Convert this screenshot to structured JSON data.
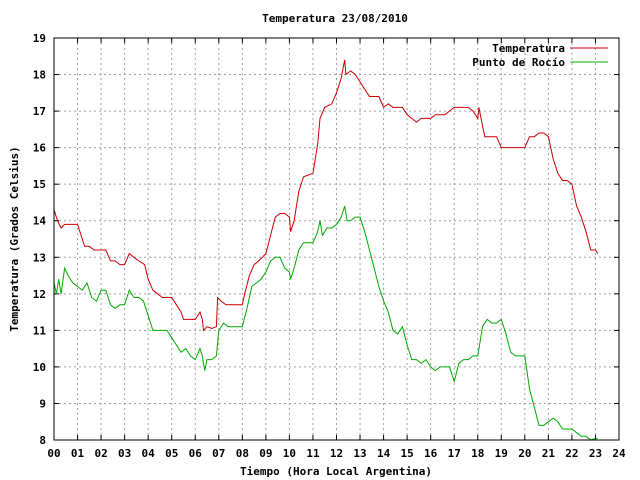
{
  "chart_data": {
    "type": "line",
    "title": "Temperatura 23/08/2010",
    "xlabel": "Tiempo (Hora Local Argentina)",
    "ylabel": "Temperatura (Grados Celsius)",
    "xlim": [
      0,
      24
    ],
    "ylim": [
      8,
      19
    ],
    "grid": true,
    "legend_position": "top-right",
    "x_ticks": [
      "00",
      "01",
      "02",
      "03",
      "04",
      "05",
      "06",
      "07",
      "08",
      "09",
      "10",
      "11",
      "12",
      "13",
      "14",
      "15",
      "16",
      "17",
      "18",
      "19",
      "20",
      "21",
      "22",
      "23",
      "24"
    ],
    "y_ticks": [
      "8",
      "9",
      "10",
      "11",
      "12",
      "13",
      "14",
      "15",
      "16",
      "17",
      "18",
      "19"
    ],
    "series": [
      {
        "name": "Temperatura",
        "color": "#cc0000",
        "points": [
          [
            0.0,
            14.3
          ],
          [
            0.15,
            14.0
          ],
          [
            0.3,
            13.8
          ],
          [
            0.45,
            13.9
          ],
          [
            0.6,
            13.9
          ],
          [
            0.8,
            13.9
          ],
          [
            1.0,
            13.9
          ],
          [
            1.15,
            13.6
          ],
          [
            1.3,
            13.3
          ],
          [
            1.5,
            13.3
          ],
          [
            1.7,
            13.2
          ],
          [
            2.0,
            13.2
          ],
          [
            2.2,
            13.2
          ],
          [
            2.4,
            12.9
          ],
          [
            2.6,
            12.9
          ],
          [
            2.8,
            12.8
          ],
          [
            3.0,
            12.8
          ],
          [
            3.2,
            13.1
          ],
          [
            3.4,
            13.0
          ],
          [
            3.6,
            12.9
          ],
          [
            3.85,
            12.8
          ],
          [
            4.0,
            12.4
          ],
          [
            4.2,
            12.1
          ],
          [
            4.4,
            12.0
          ],
          [
            4.6,
            11.9
          ],
          [
            4.8,
            11.9
          ],
          [
            5.0,
            11.9
          ],
          [
            5.2,
            11.7
          ],
          [
            5.4,
            11.5
          ],
          [
            5.5,
            11.3
          ],
          [
            5.7,
            11.3
          ],
          [
            6.0,
            11.3
          ],
          [
            6.2,
            11.5
          ],
          [
            6.3,
            11.3
          ],
          [
            6.35,
            11.0
          ],
          [
            6.5,
            11.1
          ],
          [
            6.7,
            11.05
          ],
          [
            6.9,
            11.1
          ],
          [
            6.95,
            11.9
          ],
          [
            7.1,
            11.8
          ],
          [
            7.3,
            11.7
          ],
          [
            7.5,
            11.7
          ],
          [
            7.7,
            11.7
          ],
          [
            8.0,
            11.7
          ],
          [
            8.1,
            12.0
          ],
          [
            8.3,
            12.5
          ],
          [
            8.5,
            12.8
          ],
          [
            8.7,
            12.9
          ],
          [
            9.0,
            13.1
          ],
          [
            9.2,
            13.6
          ],
          [
            9.4,
            14.1
          ],
          [
            9.6,
            14.2
          ],
          [
            9.8,
            14.2
          ],
          [
            10.0,
            14.1
          ],
          [
            10.05,
            13.7
          ],
          [
            10.2,
            14.0
          ],
          [
            10.4,
            14.8
          ],
          [
            10.6,
            15.2
          ],
          [
            11.0,
            15.3
          ],
          [
            11.2,
            16.1
          ],
          [
            11.3,
            16.8
          ],
          [
            11.5,
            17.1
          ],
          [
            11.8,
            17.2
          ],
          [
            12.0,
            17.5
          ],
          [
            12.2,
            17.9
          ],
          [
            12.35,
            18.4
          ],
          [
            12.4,
            18.0
          ],
          [
            12.6,
            18.1
          ],
          [
            12.8,
            18.0
          ],
          [
            13.0,
            17.8
          ],
          [
            13.2,
            17.6
          ],
          [
            13.4,
            17.4
          ],
          [
            13.6,
            17.4
          ],
          [
            13.8,
            17.4
          ],
          [
            14.0,
            17.1
          ],
          [
            14.2,
            17.2
          ],
          [
            14.4,
            17.1
          ],
          [
            14.6,
            17.1
          ],
          [
            14.8,
            17.1
          ],
          [
            15.0,
            16.9
          ],
          [
            15.2,
            16.8
          ],
          [
            15.4,
            16.7
          ],
          [
            15.6,
            16.8
          ],
          [
            15.8,
            16.8
          ],
          [
            16.0,
            16.8
          ],
          [
            16.2,
            16.9
          ],
          [
            16.4,
            16.9
          ],
          [
            16.6,
            16.9
          ],
          [
            16.8,
            17.0
          ],
          [
            17.0,
            17.1
          ],
          [
            17.2,
            17.1
          ],
          [
            17.4,
            17.1
          ],
          [
            17.6,
            17.1
          ],
          [
            17.8,
            17.0
          ],
          [
            18.0,
            16.8
          ],
          [
            18.05,
            17.1
          ],
          [
            18.2,
            16.6
          ],
          [
            18.3,
            16.3
          ],
          [
            18.5,
            16.3
          ],
          [
            18.8,
            16.3
          ],
          [
            19.0,
            16.0
          ],
          [
            19.2,
            16.0
          ],
          [
            19.4,
            16.0
          ],
          [
            19.6,
            16.0
          ],
          [
            19.8,
            16.0
          ],
          [
            20.0,
            16.0
          ],
          [
            20.2,
            16.3
          ],
          [
            20.4,
            16.3
          ],
          [
            20.6,
            16.4
          ],
          [
            20.8,
            16.4
          ],
          [
            21.0,
            16.3
          ],
          [
            21.2,
            15.7
          ],
          [
            21.4,
            15.3
          ],
          [
            21.6,
            15.1
          ],
          [
            21.8,
            15.1
          ],
          [
            22.0,
            15.0
          ],
          [
            22.2,
            14.4
          ],
          [
            22.4,
            14.1
          ],
          [
            22.6,
            13.7
          ],
          [
            22.8,
            13.2
          ],
          [
            23.0,
            13.2
          ],
          [
            23.1,
            13.1
          ]
        ]
      },
      {
        "name": "Punto de Rocío",
        "color": "#00aa00",
        "points": [
          [
            0.0,
            12.3
          ],
          [
            0.1,
            12.0
          ],
          [
            0.2,
            12.4
          ],
          [
            0.3,
            12.0
          ],
          [
            0.45,
            12.7
          ],
          [
            0.6,
            12.5
          ],
          [
            0.8,
            12.3
          ],
          [
            1.0,
            12.2
          ],
          [
            1.2,
            12.1
          ],
          [
            1.4,
            12.3
          ],
          [
            1.6,
            11.9
          ],
          [
            1.8,
            11.8
          ],
          [
            2.0,
            12.1
          ],
          [
            2.2,
            12.1
          ],
          [
            2.4,
            11.7
          ],
          [
            2.6,
            11.6
          ],
          [
            2.8,
            11.7
          ],
          [
            3.0,
            11.7
          ],
          [
            3.2,
            12.1
          ],
          [
            3.4,
            11.9
          ],
          [
            3.6,
            11.9
          ],
          [
            3.8,
            11.8
          ],
          [
            4.0,
            11.4
          ],
          [
            4.2,
            11.0
          ],
          [
            4.4,
            11.0
          ],
          [
            4.6,
            11.0
          ],
          [
            4.8,
            11.0
          ],
          [
            5.0,
            10.8
          ],
          [
            5.2,
            10.6
          ],
          [
            5.4,
            10.4
          ],
          [
            5.6,
            10.5
          ],
          [
            5.8,
            10.3
          ],
          [
            6.0,
            10.2
          ],
          [
            6.2,
            10.5
          ],
          [
            6.3,
            10.3
          ],
          [
            6.4,
            9.9
          ],
          [
            6.5,
            10.2
          ],
          [
            6.7,
            10.2
          ],
          [
            6.9,
            10.3
          ],
          [
            7.0,
            11.0
          ],
          [
            7.2,
            11.2
          ],
          [
            7.4,
            11.1
          ],
          [
            7.6,
            11.1
          ],
          [
            7.8,
            11.1
          ],
          [
            8.0,
            11.1
          ],
          [
            8.2,
            11.6
          ],
          [
            8.4,
            12.2
          ],
          [
            8.6,
            12.3
          ],
          [
            8.8,
            12.4
          ],
          [
            9.0,
            12.6
          ],
          [
            9.2,
            12.9
          ],
          [
            9.4,
            13.0
          ],
          [
            9.6,
            13.0
          ],
          [
            9.8,
            12.7
          ],
          [
            10.0,
            12.6
          ],
          [
            10.05,
            12.4
          ],
          [
            10.2,
            12.7
          ],
          [
            10.4,
            13.2
          ],
          [
            10.6,
            13.4
          ],
          [
            11.0,
            13.4
          ],
          [
            11.2,
            13.7
          ],
          [
            11.3,
            14.0
          ],
          [
            11.4,
            13.6
          ],
          [
            11.6,
            13.8
          ],
          [
            11.8,
            13.8
          ],
          [
            12.0,
            13.9
          ],
          [
            12.2,
            14.1
          ],
          [
            12.35,
            14.4
          ],
          [
            12.45,
            14.0
          ],
          [
            12.6,
            14.0
          ],
          [
            12.8,
            14.1
          ],
          [
            13.0,
            14.1
          ],
          [
            13.2,
            13.7
          ],
          [
            13.4,
            13.2
          ],
          [
            13.6,
            12.7
          ],
          [
            13.8,
            12.2
          ],
          [
            14.0,
            11.8
          ],
          [
            14.2,
            11.5
          ],
          [
            14.4,
            11.0
          ],
          [
            14.6,
            10.9
          ],
          [
            14.8,
            11.1
          ],
          [
            15.0,
            10.6
          ],
          [
            15.2,
            10.2
          ],
          [
            15.4,
            10.2
          ],
          [
            15.6,
            10.1
          ],
          [
            15.8,
            10.2
          ],
          [
            16.0,
            10.0
          ],
          [
            16.2,
            9.9
          ],
          [
            16.4,
            10.0
          ],
          [
            16.6,
            10.0
          ],
          [
            16.8,
            10.0
          ],
          [
            17.0,
            9.6
          ],
          [
            17.2,
            10.1
          ],
          [
            17.4,
            10.2
          ],
          [
            17.6,
            10.2
          ],
          [
            17.8,
            10.3
          ],
          [
            18.0,
            10.3
          ],
          [
            18.2,
            11.1
          ],
          [
            18.4,
            11.3
          ],
          [
            18.6,
            11.2
          ],
          [
            18.8,
            11.2
          ],
          [
            19.0,
            11.3
          ],
          [
            19.2,
            10.9
          ],
          [
            19.4,
            10.4
          ],
          [
            19.6,
            10.3
          ],
          [
            19.8,
            10.3
          ],
          [
            20.0,
            10.3
          ],
          [
            20.2,
            9.4
          ],
          [
            20.4,
            8.9
          ],
          [
            20.6,
            8.4
          ],
          [
            20.8,
            8.4
          ],
          [
            21.0,
            8.5
          ],
          [
            21.2,
            8.6
          ],
          [
            21.4,
            8.5
          ],
          [
            21.6,
            8.3
          ],
          [
            21.8,
            8.3
          ],
          [
            22.0,
            8.3
          ],
          [
            22.2,
            8.2
          ],
          [
            22.4,
            8.1
          ],
          [
            22.6,
            8.1
          ],
          [
            22.8,
            8.0
          ],
          [
            23.0,
            8.05
          ],
          [
            23.1,
            8.05
          ]
        ]
      }
    ]
  }
}
